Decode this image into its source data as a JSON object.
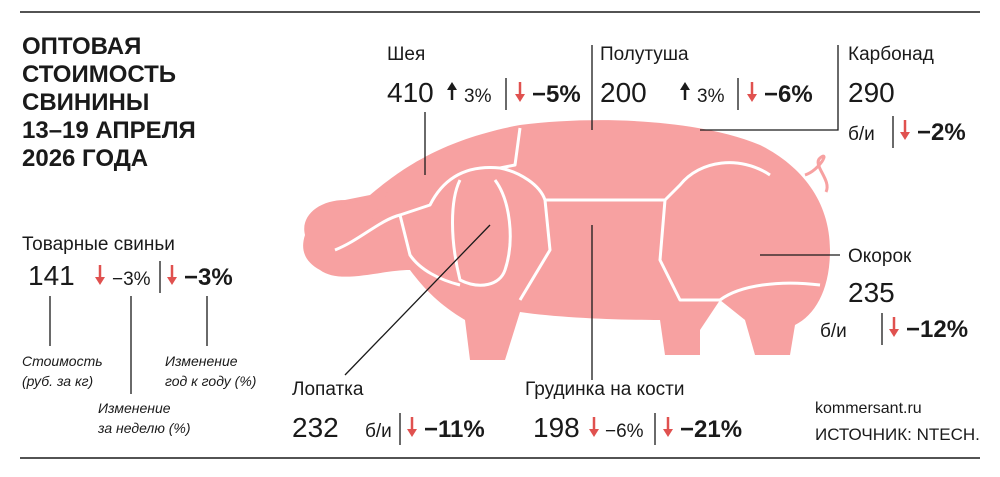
{
  "title": [
    "ОПТОВАЯ",
    "СТОИМОСТЬ",
    "СВИНИНЫ",
    "13–19 АПРЕЛЯ",
    "2026 ГОДА"
  ],
  "legend": {
    "name": "Товарные свиньи",
    "price": "141",
    "week": "−3%",
    "week_trend": "down",
    "year": "−3%",
    "year_trend": "down",
    "price_note": [
      "Стоимость",
      "(руб. за кг)"
    ],
    "week_note": [
      "Изменение",
      "за неделю (%)"
    ],
    "year_note": [
      "Изменение",
      "год к году (%)"
    ]
  },
  "cuts": [
    {
      "name": "Шея",
      "price": "410",
      "week": "3%",
      "week_trend": "up",
      "year": "−5%",
      "year_trend": "down"
    },
    {
      "name": "Полутуша",
      "price": "200",
      "week": "3%",
      "week_trend": "up",
      "year": "−6%",
      "year_trend": "down"
    },
    {
      "name": "Карбонад",
      "price": "290",
      "week": "б/и",
      "year": "−2%",
      "year_trend": "down"
    },
    {
      "name": "Окорок",
      "price": "235",
      "week": "б/и",
      "year": "−12%",
      "year_trend": "down"
    },
    {
      "name": "Лопатка",
      "price": "232",
      "week": "б/и",
      "year": "−11%",
      "year_trend": "down"
    },
    {
      "name": "Грудинка на кости",
      "price": "198",
      "week": "−6%",
      "week_trend": "down",
      "year": "−21%",
      "year_trend": "down"
    }
  ],
  "footer": {
    "site": "kommersant.ru",
    "source": "ИСТОЧНИК: NTECH."
  }
}
